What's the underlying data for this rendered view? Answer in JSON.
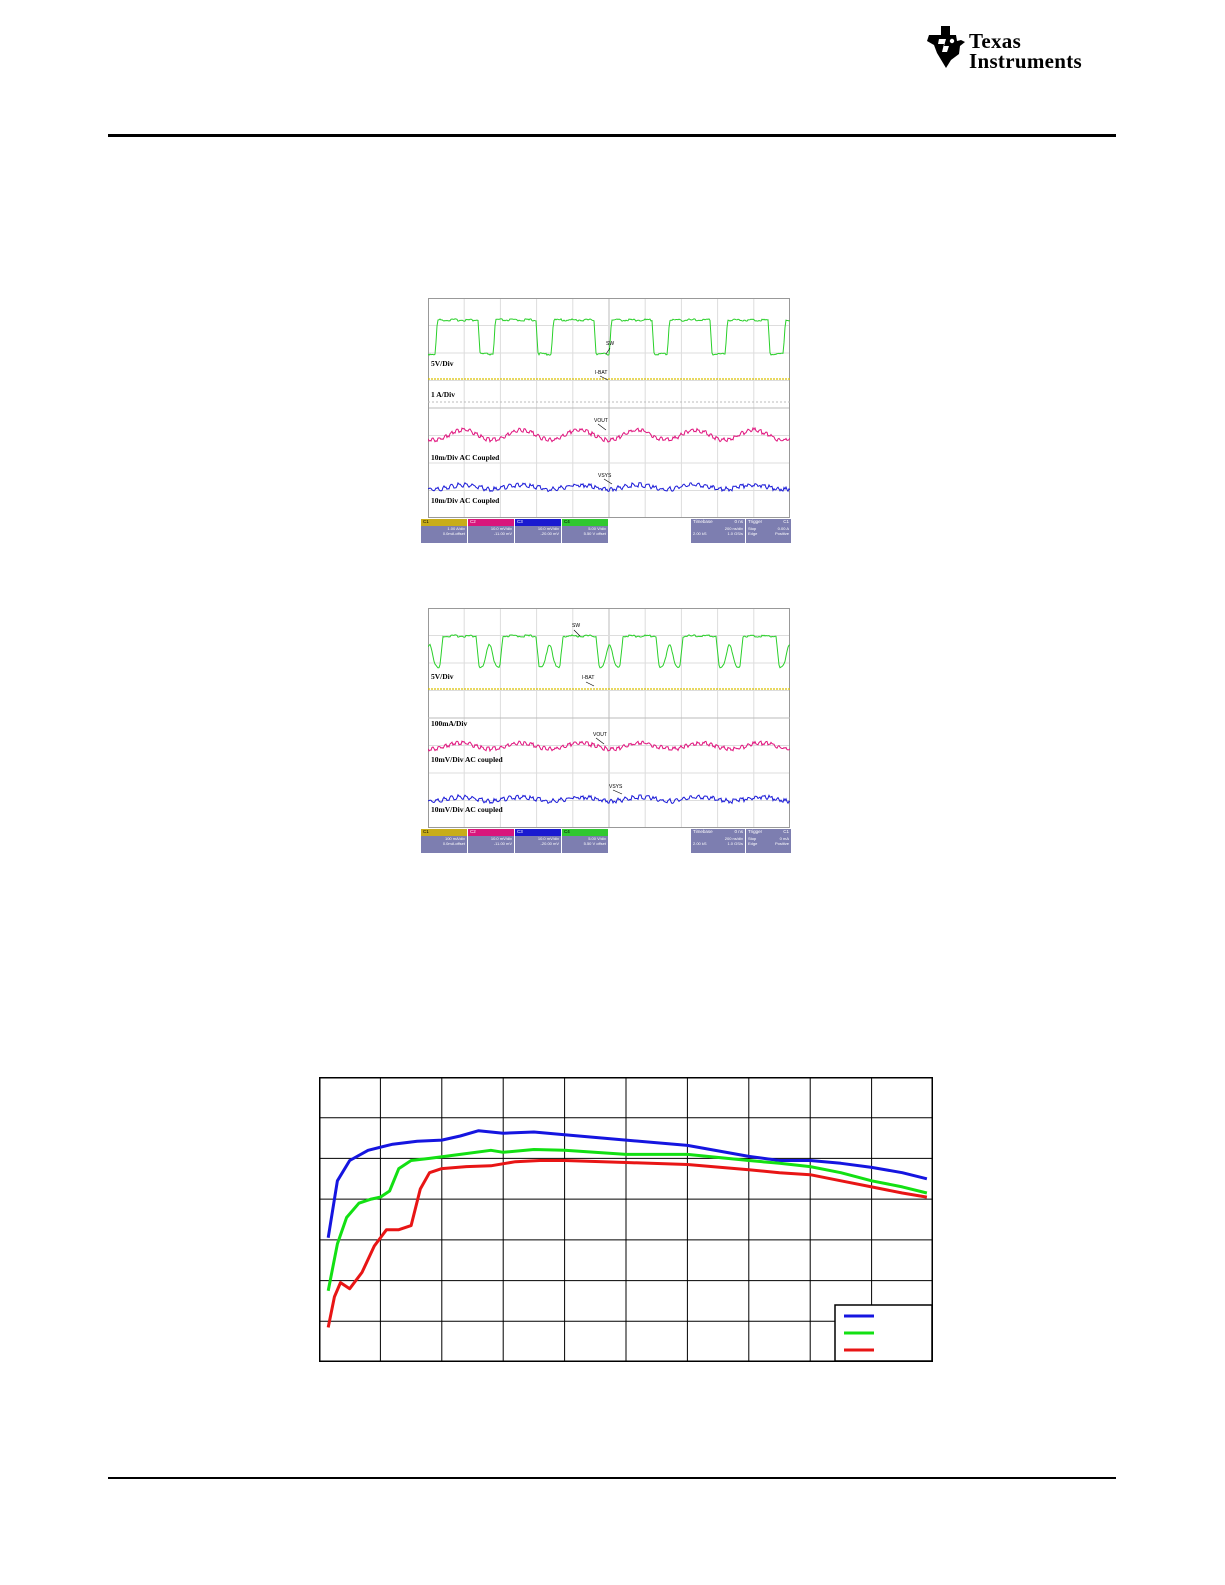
{
  "header": {
    "logo_line1": "Texas",
    "logo_line2": "Instruments"
  },
  "scope1": {
    "labels": {
      "c4_scale": "5V/Div",
      "c1_scale": "1 A/Div",
      "c2_scale": "10m/Div AC Coupled",
      "c3_scale": "10m/Div AC Coupled"
    },
    "annotations": {
      "sw": "SW",
      "ibat": "I-BAT",
      "vout": "VOUT",
      "vsys": "VSYS"
    },
    "channels": [
      {
        "id": "C1",
        "color": "#d9c100",
        "val1": "1.00 A/div",
        "val2": "0.0mA offset"
      },
      {
        "id": "C2",
        "color": "#e0157e",
        "val1": "10.0 mV/div",
        "val2": "-11.00 mV"
      },
      {
        "id": "C3",
        "color": "#1a1ad8",
        "val1": "10.0 mV/div",
        "val2": "-20.00 mV"
      },
      {
        "id": "C4",
        "color": "#2ad02a",
        "val1": "5.00 V/div",
        "val2": "5.50 V offset"
      }
    ],
    "timebase": {
      "label": "Timebase",
      "value": "0 ns",
      "val1": "200 ns/div",
      "val2": "2.00 kS",
      "val3": "1.0 GS/s"
    },
    "trigger": {
      "label": "Trigger",
      "value": "C1",
      "val1": "Stop",
      "val2": "0.00 A",
      "val3": "Edge",
      "val4": "Positive"
    }
  },
  "scope2": {
    "labels": {
      "c4_scale": "5V/Div",
      "c1_scale": "100mA/Div",
      "c2_scale": "10mV/Div AC coupled",
      "c3_scale": "10mV/Div AC coupled"
    },
    "annotations": {
      "sw": "SW",
      "ibat": "I-BAT",
      "vout": "VOUT",
      "vsys": "VSYS"
    },
    "channels": [
      {
        "id": "C1",
        "color": "#d9c100",
        "val1": "100 mA/div",
        "val2": "0.0mA offset"
      },
      {
        "id": "C2",
        "color": "#e0157e",
        "val1": "10.0 mV/div",
        "val2": "-11.00 mV"
      },
      {
        "id": "C3",
        "color": "#1a1ad8",
        "val1": "10.0 mV/div",
        "val2": "-20.00 mV"
      },
      {
        "id": "C4",
        "color": "#2ad02a",
        "val1": "5.00 V/div",
        "val2": "5.50 V offset"
      }
    ],
    "timebase": {
      "label": "Timebase",
      "value": "0 ns",
      "val1": "200 ns/div",
      "val2": "2.00 kS",
      "val3": "1.0 GS/s"
    },
    "trigger": {
      "label": "Trigger",
      "value": "C1",
      "val1": "Stop",
      "val2": "0 mA",
      "val3": "Edge",
      "val4": "Positive"
    }
  },
  "chart_data": {
    "type": "line",
    "grid": true,
    "xlim": [
      0,
      10
    ],
    "ylim": [
      0,
      7
    ],
    "series": [
      {
        "color": "#1515e0",
        "x": [
          0.15,
          0.3,
          0.5,
          0.8,
          1.2,
          1.6,
          2.0,
          2.3,
          2.6,
          3.0,
          3.5,
          4.0,
          5.0,
          6.0,
          7.0,
          7.5,
          8.0,
          8.5,
          9.0,
          9.5,
          9.9
        ],
        "y": [
          3.05,
          4.45,
          4.95,
          5.2,
          5.35,
          5.42,
          5.45,
          5.55,
          5.68,
          5.62,
          5.65,
          5.58,
          5.45,
          5.32,
          5.05,
          4.95,
          4.95,
          4.88,
          4.78,
          4.65,
          4.5
        ]
      },
      {
        "color": "#13e013",
        "x": [
          0.15,
          0.3,
          0.45,
          0.65,
          0.85,
          1.0,
          1.15,
          1.3,
          1.5,
          1.8,
          2.3,
          2.8,
          3.0,
          3.5,
          4.0,
          5.0,
          6.0,
          7.0,
          7.5,
          8.0,
          8.5,
          9.0,
          9.5,
          9.9
        ],
        "y": [
          1.75,
          2.9,
          3.55,
          3.9,
          4.0,
          4.05,
          4.2,
          4.75,
          4.95,
          5.0,
          5.1,
          5.2,
          5.15,
          5.22,
          5.2,
          5.1,
          5.1,
          4.95,
          4.88,
          4.8,
          4.65,
          4.45,
          4.3,
          4.15
        ]
      },
      {
        "color": "#e81515",
        "x": [
          0.15,
          0.25,
          0.35,
          0.5,
          0.7,
          0.9,
          1.1,
          1.3,
          1.5,
          1.65,
          1.8,
          2.0,
          2.4,
          2.8,
          3.2,
          3.6,
          4.0,
          5.0,
          6.0,
          7.0,
          7.5,
          8.0,
          8.5,
          9.0,
          9.5,
          9.9
        ],
        "y": [
          0.85,
          1.6,
          1.95,
          1.8,
          2.2,
          2.85,
          3.25,
          3.25,
          3.35,
          4.25,
          4.65,
          4.75,
          4.8,
          4.82,
          4.92,
          4.95,
          4.95,
          4.9,
          4.85,
          4.72,
          4.65,
          4.6,
          4.45,
          4.3,
          4.15,
          4.05
        ]
      }
    ]
  }
}
